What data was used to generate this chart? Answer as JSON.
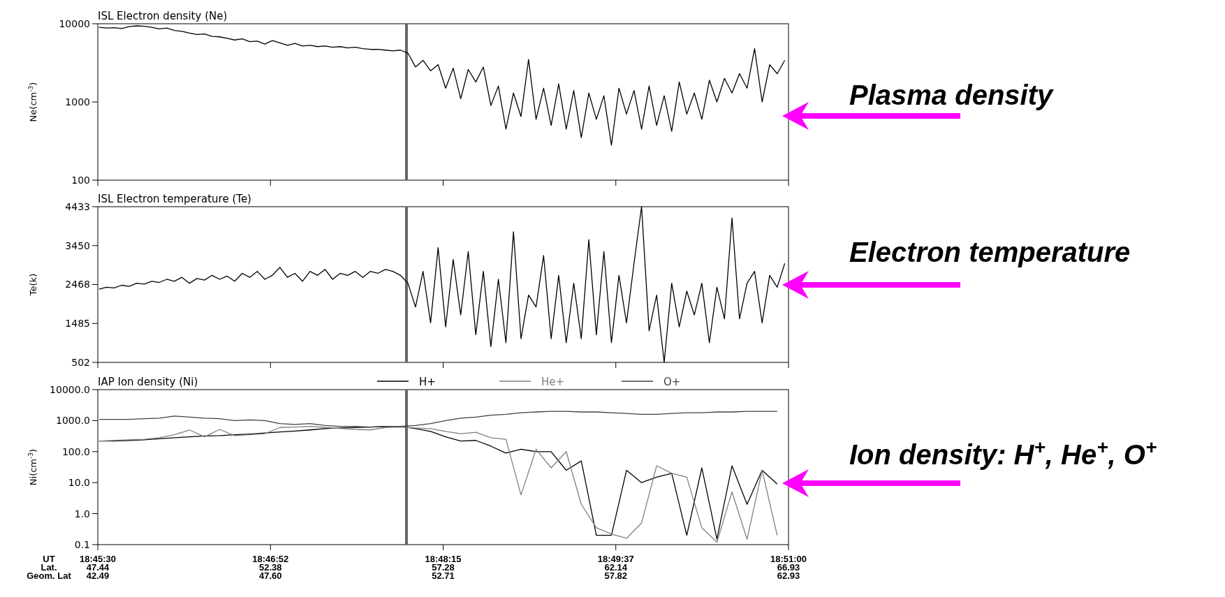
{
  "chart_data": [
    {
      "type": "line",
      "title": "ISL Electron density (Ne)",
      "ylabel": "Ne(cm$^{-3}$)",
      "log": true,
      "ylim": [
        100,
        10000
      ],
      "yticks": [
        100,
        1000,
        10000
      ],
      "xlim": [
        18.758333,
        18.85
      ],
      "xticks": [
        {
          "value": 18.758333,
          "label": null
        },
        {
          "value": 18.78125,
          "label": null
        },
        {
          "value": 18.804167,
          "label": null
        },
        {
          "value": 18.827083,
          "label": null
        },
        {
          "value": 18.85,
          "label": null
        }
      ],
      "tick_labels": "y",
      "legend": false,
      "ref_lines": [
        {
          "axis": "x",
          "value": 18.7993,
          "color": "#666666"
        }
      ],
      "annotations": [
        "Plasma density"
      ],
      "x": [
        18.7585,
        18.7595,
        18.7605,
        18.7615,
        18.7625,
        18.7635,
        18.7645,
        18.7655,
        18.7665,
        18.7675,
        18.7685,
        18.7695,
        18.7705,
        18.7715,
        18.7725,
        18.7735,
        18.7745,
        18.7755,
        18.7765,
        18.7775,
        18.7785,
        18.7795,
        18.7805,
        18.7815,
        18.7825,
        18.7835,
        18.7845,
        18.7855,
        18.7865,
        18.7875,
        18.7885,
        18.7895,
        18.7905,
        18.7915,
        18.7925,
        18.7935,
        18.7945,
        18.7955,
        18.7965,
        18.7975,
        18.7985,
        18.7995,
        18.8005,
        18.8015,
        18.8025,
        18.8035,
        18.8045,
        18.8055,
        18.8065,
        18.8075,
        18.8085,
        18.8095,
        18.8105,
        18.8115,
        18.8125,
        18.8135,
        18.8145,
        18.8155,
        18.8165,
        18.8175,
        18.8185,
        18.8195,
        18.8205,
        18.8215,
        18.8225,
        18.8235,
        18.8245,
        18.8255,
        18.8265,
        18.8275,
        18.8285,
        18.8295,
        18.8305,
        18.8315,
        18.8325,
        18.8335,
        18.8345,
        18.8355,
        18.8365,
        18.8375,
        18.8385,
        18.8395,
        18.8405,
        18.8415,
        18.8425,
        18.8435,
        18.8445,
        18.8455,
        18.8465,
        18.8475,
        18.8485,
        18.8495
      ],
      "series": [
        {
          "color": "#000000",
          "values": [
            9000,
            8800,
            8900,
            8700,
            9200,
            9400,
            9300,
            9000,
            8600,
            8800,
            8200,
            8000,
            7600,
            7300,
            7400,
            6900,
            6800,
            6500,
            6200,
            6400,
            5900,
            6000,
            5500,
            6100,
            5700,
            5300,
            5600,
            5200,
            5300,
            5100,
            5200,
            5000,
            5100,
            4900,
            5000,
            4800,
            4700,
            4700,
            4600,
            4500,
            4600,
            4200,
            2800,
            3400,
            2500,
            3000,
            1500,
            2700,
            1100,
            2600,
            1800,
            2800,
            900,
            1600,
            450,
            1300,
            650,
            3500,
            600,
            1500,
            500,
            1700,
            450,
            1400,
            350,
            1300,
            600,
            1200,
            280,
            1500,
            700,
            1400,
            450,
            1600,
            500,
            1200,
            420,
            1800,
            700,
            1300,
            600,
            1900,
            1000,
            2000,
            1300,
            2300,
            1500,
            4800,
            1000,
            3000,
            2300,
            3400
          ]
        }
      ]
    },
    {
      "type": "line",
      "title": "ISL Electron temperature (Te)",
      "ylabel": "Te(k)",
      "ylim": [
        502,
        4433
      ],
      "yticks": [
        502,
        1485,
        2468,
        3450,
        4433
      ],
      "xlim": [
        18.758333,
        18.85
      ],
      "xticks": [
        {
          "value": 18.758333,
          "label": null
        },
        {
          "value": 18.78125,
          "label": null
        },
        {
          "value": 18.804167,
          "label": null
        },
        {
          "value": 18.827083,
          "label": null
        },
        {
          "value": 18.85,
          "label": null
        }
      ],
      "tick_labels": "y",
      "legend": false,
      "ref_lines": [
        {
          "axis": "x",
          "value": 18.7993,
          "color": "#666666"
        }
      ],
      "annotations": [
        "Electron temperature"
      ],
      "x": [
        18.7585,
        18.7595,
        18.7605,
        18.7615,
        18.7625,
        18.7635,
        18.7645,
        18.7655,
        18.7665,
        18.7675,
        18.7685,
        18.7695,
        18.7705,
        18.7715,
        18.7725,
        18.7735,
        18.7745,
        18.7755,
        18.7765,
        18.7775,
        18.7785,
        18.7795,
        18.7805,
        18.7815,
        18.7825,
        18.7835,
        18.7845,
        18.7855,
        18.7865,
        18.7875,
        18.7885,
        18.7895,
        18.7905,
        18.7915,
        18.7925,
        18.7935,
        18.7945,
        18.7955,
        18.7965,
        18.7975,
        18.7985,
        18.7995,
        18.8005,
        18.8015,
        18.8025,
        18.8035,
        18.8045,
        18.8055,
        18.8065,
        18.8075,
        18.8085,
        18.8095,
        18.8105,
        18.8115,
        18.8125,
        18.8135,
        18.8145,
        18.8155,
        18.8165,
        18.8175,
        18.8185,
        18.8195,
        18.8205,
        18.8215,
        18.8225,
        18.8235,
        18.8245,
        18.8255,
        18.8265,
        18.8275,
        18.8285,
        18.8295,
        18.8305,
        18.8315,
        18.8325,
        18.8335,
        18.8345,
        18.8355,
        18.8365,
        18.8375,
        18.8385,
        18.8395,
        18.8405,
        18.8415,
        18.8425,
        18.8435,
        18.8445,
        18.8455,
        18.8465,
        18.8475,
        18.8485,
        18.8495
      ],
      "series": [
        {
          "color": "#000000",
          "values": [
            2350,
            2400,
            2380,
            2450,
            2420,
            2500,
            2480,
            2550,
            2520,
            2600,
            2550,
            2650,
            2500,
            2620,
            2580,
            2700,
            2600,
            2680,
            2550,
            2750,
            2650,
            2800,
            2600,
            2700,
            2900,
            2650,
            2750,
            2550,
            2800,
            2700,
            2850,
            2600,
            2750,
            2700,
            2800,
            2650,
            2800,
            2750,
            2850,
            2800,
            2700,
            2500,
            1900,
            2800,
            1500,
            3400,
            1400,
            3100,
            1700,
            3300,
            1200,
            2800,
            900,
            2600,
            1000,
            3800,
            1100,
            2200,
            1900,
            3200,
            1100,
            2700,
            1000,
            2500,
            1100,
            3600,
            1200,
            3300,
            1000,
            2700,
            1500,
            3000,
            4433,
            1300,
            2200,
            502,
            2500,
            1400,
            2300,
            1700,
            2500,
            1000,
            2400,
            1600,
            4150,
            1600,
            2500,
            2800,
            1500,
            2700,
            2400,
            3000
          ]
        }
      ]
    },
    {
      "type": "line",
      "title": "IAP Ion density (Ni)",
      "ylabel": "Ni(cm$^{-3}$)",
      "log": true,
      "ylim": [
        0.1,
        10000
      ],
      "yticks": [
        {
          "value": 0.1,
          "label": "0.1"
        },
        {
          "value": 1,
          "label": "1.0"
        },
        {
          "value": 10,
          "label": "10.0"
        },
        {
          "value": 100,
          "label": "100.0"
        },
        {
          "value": 1000,
          "label": "1000.0"
        },
        {
          "value": 10000,
          "label": "10000.0"
        }
      ],
      "xlim": [
        18.758333,
        18.85
      ],
      "xticks": [
        {
          "value": 18.758333,
          "label": "18:45:30"
        },
        {
          "value": 18.78125,
          "label": "18:46:52"
        },
        {
          "value": 18.804167,
          "label": "18:48:15"
        },
        {
          "value": 18.827083,
          "label": "18:49:37"
        },
        {
          "value": 18.85,
          "label": "18:51:00"
        }
      ],
      "legend": "top right",
      "ref_lines": [
        {
          "axis": "x",
          "value": 18.7993,
          "color": "#666666"
        }
      ],
      "annotations": [
        "Ion density: H$^{+}$, He$^{+}$, O$^{+}$",
        "UT",
        "Lat.",
        "Geom. Lat",
        "47.44",
        "42.49",
        "52.38",
        "47.60",
        "57.28",
        "52.71",
        "62.14",
        "57.82",
        "66.93",
        "62.93"
      ],
      "x": [
        18.7585,
        18.7605,
        18.7625,
        18.7645,
        18.7665,
        18.7685,
        18.7705,
        18.7725,
        18.7745,
        18.7765,
        18.7785,
        18.7805,
        18.7825,
        18.7845,
        18.7865,
        18.7885,
        18.7905,
        18.7925,
        18.7945,
        18.7965,
        18.7985,
        18.8005,
        18.8025,
        18.8045,
        18.8065,
        18.8085,
        18.8105,
        18.8125,
        18.8145,
        18.8165,
        18.8185,
        18.8205,
        18.8225,
        18.8245,
        18.8265,
        18.8285,
        18.8305,
        18.8325,
        18.8345,
        18.8365,
        18.8385,
        18.8405,
        18.8425,
        18.8445,
        18.8465,
        18.8485
      ],
      "series": [
        {
          "name": "H+",
          "color": "#000000",
          "values": [
            220,
            220,
            230,
            240,
            260,
            280,
            300,
            320,
            330,
            350,
            370,
            400,
            430,
            460,
            500,
            550,
            580,
            600,
            620,
            640,
            650,
            550,
            450,
            300,
            220,
            230,
            150,
            90,
            120,
            100,
            100,
            25,
            50,
            0.2,
            0.2,
            25,
            10,
            15,
            20,
            0.2,
            30,
            0.15,
            35,
            2,
            25,
            9
          ]
        },
        {
          "name": "He+",
          "color": "#808080",
          "values": [
            220,
            230,
            240,
            250,
            280,
            350,
            500,
            300,
            520,
            330,
            350,
            380,
            600,
            620,
            650,
            600,
            560,
            520,
            500,
            600,
            620,
            580,
            550,
            450,
            380,
            420,
            280,
            250,
            4,
            120,
            30,
            100,
            2,
            0.35,
            0.22,
            0.16,
            0.5,
            35,
            20,
            15,
            0.35,
            0.12,
            5,
            0.15,
            25,
            0.2
          ]
        },
        {
          "name": "O+",
          "color": "#404040",
          "values": [
            1100,
            1100,
            1100,
            1150,
            1200,
            1400,
            1300,
            1200,
            1150,
            1000,
            1050,
            1000,
            800,
            750,
            800,
            700,
            650,
            650,
            620,
            650,
            650,
            700,
            800,
            1000,
            1200,
            1300,
            1500,
            1600,
            1800,
            1900,
            2000,
            2000,
            1900,
            1900,
            1800,
            1700,
            1600,
            1600,
            1700,
            1800,
            1800,
            1900,
            1900,
            2000,
            2000,
            2000
          ]
        }
      ]
    }
  ]
}
